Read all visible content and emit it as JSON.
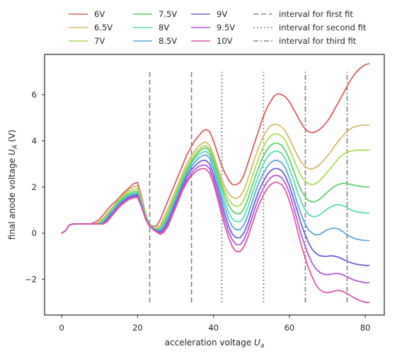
{
  "chart_data": {
    "type": "line",
    "title": "",
    "xlabel": "acceleration voltage",
    "xlabel_sub": "a",
    "ylabel": "final anode voltage",
    "ylabel_sub": "A",
    "ylabel_unit": "(V)",
    "xlim": [
      -4.5,
      85
    ],
    "ylim": [
      -3.55,
      7.75
    ],
    "xticks": [
      0,
      20,
      40,
      60,
      80
    ],
    "yticks": [
      -2,
      0,
      2,
      4,
      6
    ],
    "grid": false,
    "legend_position": "top-center",
    "x": [
      0,
      1,
      2,
      3,
      4,
      5,
      6,
      7,
      8,
      9,
      10,
      11,
      12,
      13,
      14,
      15,
      16,
      17,
      18,
      19,
      20,
      21,
      22,
      23,
      24,
      25,
      26,
      27,
      28,
      29,
      30,
      31,
      32,
      33,
      34,
      35,
      36,
      37,
      38,
      39,
      40,
      41,
      42,
      43,
      44,
      45,
      46,
      47,
      48,
      49,
      50,
      51,
      52,
      53,
      54,
      55,
      56,
      57,
      58,
      59,
      60,
      61,
      62,
      63,
      64,
      65,
      66,
      67,
      68,
      69,
      70,
      71,
      72,
      73,
      74,
      75,
      76,
      77,
      78,
      79,
      80,
      81
    ],
    "series": [
      {
        "name": "6V",
        "color": "#d65f5f",
        "values": [
          0,
          0.1,
          0.35,
          0.4,
          0.4,
          0.4,
          0.4,
          0.4,
          0.42,
          0.5,
          0.6,
          0.8,
          1.0,
          1.2,
          1.35,
          1.5,
          1.7,
          1.85,
          2.0,
          2.15,
          2.2,
          1.6,
          0.9,
          0.4,
          0.3,
          0.3,
          0.6,
          1.0,
          1.4,
          1.8,
          2.2,
          2.6,
          3.0,
          3.4,
          3.7,
          4.0,
          4.2,
          4.4,
          4.5,
          4.4,
          4.0,
          3.5,
          3.0,
          2.6,
          2.3,
          2.1,
          2.1,
          2.2,
          2.5,
          3.0,
          3.5,
          4.0,
          4.5,
          5.0,
          5.4,
          5.7,
          5.95,
          6.05,
          6.0,
          5.9,
          5.7,
          5.4,
          5.1,
          4.8,
          4.55,
          4.4,
          4.35,
          4.4,
          4.5,
          4.65,
          4.85,
          5.1,
          5.4,
          5.7,
          6.0,
          6.3,
          6.6,
          6.85,
          7.05,
          7.2,
          7.3,
          7.35
        ]
      },
      {
        "name": "6.5V",
        "color": "#d5bb67",
        "values": [
          0,
          0.1,
          0.35,
          0.4,
          0.4,
          0.4,
          0.4,
          0.4,
          0.4,
          0.42,
          0.5,
          0.65,
          0.85,
          1.05,
          1.25,
          1.45,
          1.62,
          1.78,
          1.92,
          2.02,
          2.05,
          1.5,
          0.85,
          0.4,
          0.25,
          0.2,
          0.35,
          0.7,
          1.05,
          1.45,
          1.85,
          2.25,
          2.65,
          3.0,
          3.3,
          3.55,
          3.75,
          3.9,
          3.95,
          3.8,
          3.4,
          2.9,
          2.4,
          2.0,
          1.7,
          1.55,
          1.5,
          1.6,
          1.85,
          2.3,
          2.8,
          3.3,
          3.75,
          4.15,
          4.45,
          4.65,
          4.72,
          4.7,
          4.6,
          4.4,
          4.1,
          3.75,
          3.4,
          3.1,
          2.9,
          2.8,
          2.78,
          2.85,
          2.98,
          3.15,
          3.35,
          3.55,
          3.8,
          4.0,
          4.2,
          4.38,
          4.52,
          4.6,
          4.65,
          4.68,
          4.68,
          4.68
        ]
      },
      {
        "name": "7V",
        "color": "#acdc56",
        "values": [
          0,
          0.1,
          0.35,
          0.4,
          0.4,
          0.4,
          0.4,
          0.4,
          0.4,
          0.4,
          0.45,
          0.6,
          0.8,
          1.0,
          1.2,
          1.4,
          1.55,
          1.7,
          1.82,
          1.9,
          1.93,
          1.4,
          0.8,
          0.4,
          0.25,
          0.18,
          0.25,
          0.55,
          0.9,
          1.3,
          1.7,
          2.1,
          2.5,
          2.85,
          3.15,
          3.4,
          3.6,
          3.75,
          3.8,
          3.65,
          3.25,
          2.75,
          2.25,
          1.8,
          1.45,
          1.25,
          1.15,
          1.2,
          1.45,
          1.85,
          2.35,
          2.85,
          3.3,
          3.7,
          4.0,
          4.2,
          4.3,
          4.3,
          4.2,
          4.0,
          3.65,
          3.25,
          2.85,
          2.5,
          2.28,
          2.15,
          2.1,
          2.15,
          2.28,
          2.45,
          2.65,
          2.85,
          3.05,
          3.25,
          3.4,
          3.5,
          3.55,
          3.58,
          3.6,
          3.6,
          3.6,
          3.6
        ]
      },
      {
        "name": "7.5V",
        "color": "#5fd06a",
        "values": [
          0,
          0.1,
          0.35,
          0.4,
          0.4,
          0.4,
          0.4,
          0.4,
          0.4,
          0.4,
          0.42,
          0.55,
          0.75,
          0.95,
          1.15,
          1.35,
          1.5,
          1.63,
          1.73,
          1.8,
          1.82,
          1.35,
          0.75,
          0.38,
          0.23,
          0.15,
          0.2,
          0.45,
          0.8,
          1.2,
          1.6,
          2.0,
          2.4,
          2.75,
          3.05,
          3.3,
          3.5,
          3.65,
          3.7,
          3.55,
          3.15,
          2.65,
          2.1,
          1.6,
          1.2,
          0.95,
          0.85,
          0.85,
          1.05,
          1.45,
          1.95,
          2.45,
          2.9,
          3.3,
          3.6,
          3.8,
          3.9,
          3.9,
          3.8,
          3.55,
          3.2,
          2.75,
          2.3,
          1.9,
          1.6,
          1.42,
          1.35,
          1.38,
          1.48,
          1.62,
          1.78,
          1.92,
          2.04,
          2.12,
          2.16,
          2.15,
          2.12,
          2.08,
          2.05,
          2.02,
          2.0,
          2.0
        ]
      },
      {
        "name": "8V",
        "color": "#56dcb5",
        "values": [
          0,
          0.1,
          0.35,
          0.4,
          0.4,
          0.4,
          0.4,
          0.4,
          0.4,
          0.4,
          0.4,
          0.5,
          0.7,
          0.9,
          1.1,
          1.3,
          1.45,
          1.57,
          1.67,
          1.73,
          1.75,
          1.3,
          0.72,
          0.36,
          0.22,
          0.13,
          0.15,
          0.38,
          0.7,
          1.1,
          1.5,
          1.9,
          2.3,
          2.65,
          2.95,
          3.2,
          3.4,
          3.5,
          3.55,
          3.4,
          3.0,
          2.45,
          1.9,
          1.35,
          0.9,
          0.6,
          0.5,
          0.5,
          0.7,
          1.1,
          1.6,
          2.1,
          2.55,
          2.95,
          3.25,
          3.45,
          3.55,
          3.55,
          3.45,
          3.2,
          2.8,
          2.35,
          1.85,
          1.4,
          1.05,
          0.82,
          0.72,
          0.72,
          0.8,
          0.92,
          1.05,
          1.15,
          1.22,
          1.24,
          1.2,
          1.12,
          1.03,
          0.96,
          0.92,
          0.9,
          0.88,
          0.88
        ]
      },
      {
        "name": "8.5V",
        "color": "#5ea5d9",
        "values": [
          0,
          0.1,
          0.35,
          0.4,
          0.4,
          0.4,
          0.4,
          0.4,
          0.4,
          0.4,
          0.4,
          0.45,
          0.65,
          0.85,
          1.05,
          1.25,
          1.4,
          1.52,
          1.62,
          1.68,
          1.7,
          1.25,
          0.7,
          0.35,
          0.2,
          0.12,
          0.1,
          0.3,
          0.6,
          1.0,
          1.4,
          1.8,
          2.2,
          2.55,
          2.85,
          3.05,
          3.25,
          3.35,
          3.4,
          3.25,
          2.8,
          2.25,
          1.65,
          1.1,
          0.6,
          0.28,
          0.15,
          0.15,
          0.35,
          0.75,
          1.25,
          1.75,
          2.2,
          2.55,
          2.85,
          3.05,
          3.15,
          3.15,
          3.05,
          2.8,
          2.4,
          1.9,
          1.35,
          0.85,
          0.45,
          0.15,
          0.0,
          -0.08,
          -0.05,
          0.05,
          0.15,
          0.2,
          0.22,
          0.18,
          0.08,
          -0.05,
          -0.15,
          -0.22,
          -0.27,
          -0.3,
          -0.32,
          -0.32
        ]
      },
      {
        "name": "9V",
        "color": "#6a5fd0",
        "values": [
          0,
          0.1,
          0.35,
          0.4,
          0.4,
          0.4,
          0.4,
          0.4,
          0.4,
          0.4,
          0.4,
          0.42,
          0.6,
          0.8,
          1.0,
          1.2,
          1.35,
          1.47,
          1.57,
          1.62,
          1.65,
          1.2,
          0.68,
          0.34,
          0.2,
          0.1,
          0.05,
          0.2,
          0.5,
          0.9,
          1.3,
          1.7,
          2.1,
          2.45,
          2.7,
          2.9,
          3.05,
          3.15,
          3.15,
          3.0,
          2.55,
          2.0,
          1.4,
          0.8,
          0.3,
          -0.05,
          -0.2,
          -0.2,
          0.0,
          0.4,
          0.9,
          1.4,
          1.85,
          2.2,
          2.5,
          2.7,
          2.8,
          2.8,
          2.7,
          2.45,
          2.05,
          1.55,
          1.0,
          0.45,
          0.0,
          -0.4,
          -0.7,
          -0.88,
          -0.98,
          -1.0,
          -1.0,
          -0.98,
          -1.0,
          -1.05,
          -1.12,
          -1.2,
          -1.27,
          -1.32,
          -1.36,
          -1.38,
          -1.4,
          -1.4
        ]
      },
      {
        "name": "9.5V",
        "color": "#b856dc",
        "values": [
          0,
          0.1,
          0.35,
          0.4,
          0.4,
          0.4,
          0.4,
          0.4,
          0.4,
          0.4,
          0.4,
          0.4,
          0.55,
          0.75,
          0.95,
          1.15,
          1.3,
          1.42,
          1.52,
          1.57,
          1.6,
          1.18,
          0.66,
          0.33,
          0.18,
          0.08,
          0.0,
          0.12,
          0.4,
          0.8,
          1.2,
          1.6,
          2.0,
          2.3,
          2.55,
          2.75,
          2.88,
          2.95,
          2.95,
          2.8,
          2.35,
          1.75,
          1.15,
          0.55,
          0.05,
          -0.3,
          -0.5,
          -0.5,
          -0.3,
          0.1,
          0.6,
          1.1,
          1.55,
          1.9,
          2.2,
          2.4,
          2.5,
          2.5,
          2.4,
          2.15,
          1.75,
          1.2,
          0.6,
          0.0,
          -0.5,
          -0.95,
          -1.3,
          -1.55,
          -1.7,
          -1.78,
          -1.8,
          -1.78,
          -1.75,
          -1.75,
          -1.8,
          -1.88,
          -1.96,
          -2.03,
          -2.08,
          -2.12,
          -2.15,
          -2.15
        ]
      },
      {
        "name": "10V",
        "color": "#dc56a8",
        "values": [
          0,
          0.1,
          0.35,
          0.4,
          0.4,
          0.4,
          0.4,
          0.4,
          0.4,
          0.4,
          0.4,
          0.4,
          0.5,
          0.7,
          0.9,
          1.1,
          1.25,
          1.38,
          1.48,
          1.53,
          1.55,
          1.15,
          0.65,
          0.32,
          0.17,
          0.05,
          -0.05,
          0.05,
          0.3,
          0.7,
          1.1,
          1.5,
          1.9,
          2.2,
          2.45,
          2.62,
          2.75,
          2.8,
          2.78,
          2.6,
          2.15,
          1.55,
          0.9,
          0.3,
          -0.2,
          -0.6,
          -0.8,
          -0.8,
          -0.6,
          -0.2,
          0.3,
          0.8,
          1.25,
          1.6,
          1.9,
          2.1,
          2.2,
          2.2,
          2.1,
          1.85,
          1.4,
          0.85,
          0.2,
          -0.45,
          -1.0,
          -1.5,
          -1.9,
          -2.25,
          -2.45,
          -2.55,
          -2.58,
          -2.55,
          -2.5,
          -2.48,
          -2.52,
          -2.6,
          -2.7,
          -2.8,
          -2.88,
          -2.95,
          -3.0,
          -3.0
        ]
      }
    ],
    "fit_intervals": [
      {
        "name": "interval for first fit",
        "style": "dashed",
        "color": "#808080",
        "x": [
          23.2,
          34.2
        ]
      },
      {
        "name": "interval for second fit",
        "style": "dotted",
        "color": "#808080",
        "x": [
          42.2,
          53.2
        ]
      },
      {
        "name": "interval for third fit",
        "style": "dashdot",
        "color": "#808080",
        "x": [
          64.2,
          75.2
        ]
      }
    ],
    "fit_interval_ylim": [
      -3.0,
      7.0
    ]
  }
}
